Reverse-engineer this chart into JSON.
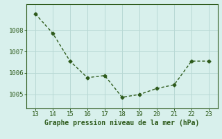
{
  "x": [
    13,
    14,
    15,
    16,
    17,
    18,
    19,
    20,
    21,
    22,
    23
  ],
  "y": [
    1008.75,
    1007.85,
    1006.55,
    1005.78,
    1005.88,
    1004.87,
    1005.0,
    1005.28,
    1005.45,
    1006.55,
    1006.55
  ],
  "line_color": "#2d5a1b",
  "marker": "D",
  "marker_size": 2.5,
  "xlabel": "Graphe pression niveau de la mer (hPa)",
  "xlim": [
    12.5,
    23.5
  ],
  "ylim": [
    1004.35,
    1009.2
  ],
  "yticks": [
    1005,
    1006,
    1007,
    1008
  ],
  "xticks": [
    13,
    14,
    15,
    16,
    17,
    18,
    19,
    20,
    21,
    22,
    23
  ],
  "bg_color": "#d8f0ec",
  "grid_color": "#b8d8d4",
  "axis_color": "#2d5a1b",
  "tick_color": "#2d5a1b",
  "label_color": "#2d5a1b",
  "label_fontsize": 7,
  "tick_fontsize": 6.5
}
